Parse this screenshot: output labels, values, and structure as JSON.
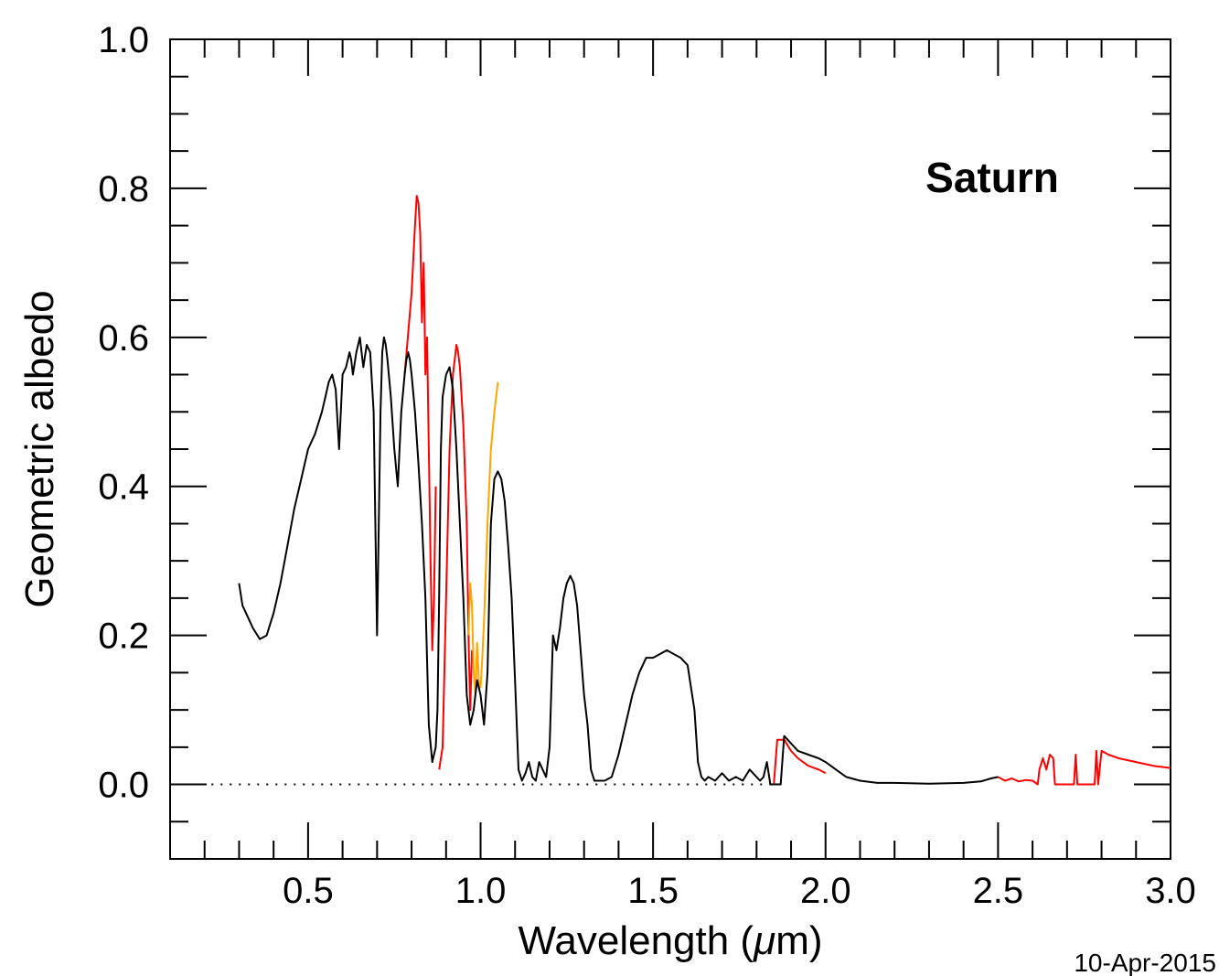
{
  "chart_data": {
    "type": "line",
    "title": "",
    "annotation": "Saturn",
    "date_stamp": "10-Apr-2015",
    "xlabel_main": "Wavelength (",
    "xlabel_mu": "μ",
    "xlabel_end": "m)",
    "ylabel": "Geometric albedo",
    "xlim": [
      0.1,
      3.0
    ],
    "ylim": [
      -0.1,
      1.0
    ],
    "xticks": [
      0.5,
      1.0,
      1.5,
      2.0,
      2.5,
      3.0
    ],
    "xtick_labels": [
      "0.5",
      "1.0",
      "1.5",
      "2.0",
      "2.5",
      "3.0"
    ],
    "yticks": [
      0.0,
      0.2,
      0.4,
      0.6,
      0.8,
      1.0
    ],
    "ytick_labels": [
      "0.0",
      "0.2",
      "0.4",
      "0.6",
      "0.8",
      "1.0"
    ],
    "zero_line": {
      "y": 0.0,
      "x_start": 0.22,
      "x_end": 1.84,
      "style": "dotted"
    },
    "colors": {
      "black": "#000000",
      "red": "#ff0000",
      "orange": "#ffa500"
    },
    "series": [
      {
        "color": "#ff0000",
        "x": [
          0.78,
          0.8,
          0.81,
          0.815,
          0.82,
          0.825,
          0.83,
          0.835,
          0.84,
          0.845,
          0.85,
          0.855,
          0.86,
          0.865,
          0.87
        ],
        "y": [
          0.55,
          0.66,
          0.75,
          0.79,
          0.78,
          0.74,
          0.62,
          0.7,
          0.55,
          0.6,
          0.45,
          0.3,
          0.18,
          0.25,
          0.4
        ]
      },
      {
        "color": "#ff0000",
        "x": [
          0.88,
          0.89,
          0.9,
          0.91,
          0.92,
          0.93,
          0.935,
          0.94,
          0.95,
          0.96,
          0.965,
          0.97,
          0.975
        ],
        "y": [
          0.02,
          0.05,
          0.25,
          0.45,
          0.55,
          0.59,
          0.58,
          0.56,
          0.48,
          0.35,
          0.2,
          0.1,
          0.18
        ]
      },
      {
        "color": "#ffa500",
        "x": [
          0.965,
          0.97,
          0.975,
          0.98,
          0.985,
          0.99,
          0.995,
          1.0,
          1.005,
          1.01,
          1.02,
          1.03,
          1.04,
          1.05
        ],
        "y": [
          0.2,
          0.27,
          0.24,
          0.15,
          0.12,
          0.19,
          0.14,
          0.13,
          0.17,
          0.22,
          0.35,
          0.45,
          0.5,
          0.54
        ]
      },
      {
        "color": "#ff0000",
        "x": [
          1.85,
          1.86,
          1.88,
          1.9,
          1.92,
          1.95,
          1.98,
          2.0
        ],
        "y": [
          0.0,
          0.06,
          0.06,
          0.045,
          0.035,
          0.025,
          0.02,
          0.015
        ]
      },
      {
        "color": "#ff0000",
        "x": [
          2.5,
          2.52,
          2.54,
          2.56,
          2.58,
          2.6,
          2.615,
          2.62,
          2.63,
          2.64,
          2.65,
          2.66,
          2.665,
          2.67,
          2.7,
          2.72,
          2.725,
          2.73,
          2.735,
          2.75,
          2.78,
          2.785,
          2.79,
          2.8,
          2.82,
          2.85,
          2.9,
          2.95,
          3.0
        ],
        "y": [
          0.01,
          0.005,
          0.008,
          0.004,
          0.006,
          0.005,
          0.0,
          0.02,
          0.035,
          0.02,
          0.04,
          0.035,
          0.0,
          0.0,
          0.0,
          0.0,
          0.04,
          0.0,
          0.0,
          0.0,
          0.0,
          0.045,
          0.0,
          0.045,
          0.04,
          0.035,
          0.03,
          0.025,
          0.022
        ]
      },
      {
        "color": "#000000",
        "x": [
          0.3,
          0.31,
          0.32,
          0.34,
          0.36,
          0.38,
          0.4,
          0.42,
          0.44,
          0.46,
          0.48,
          0.5,
          0.52,
          0.54,
          0.55,
          0.56,
          0.57,
          0.58,
          0.59,
          0.6,
          0.61,
          0.615,
          0.62,
          0.625,
          0.63,
          0.64,
          0.65,
          0.66,
          0.67,
          0.68,
          0.69,
          0.7,
          0.71,
          0.715,
          0.72,
          0.725,
          0.73,
          0.74,
          0.75,
          0.76,
          0.77,
          0.78,
          0.785,
          0.79,
          0.795,
          0.8,
          0.81,
          0.82,
          0.83,
          0.84,
          0.85,
          0.86,
          0.87,
          0.875,
          0.88,
          0.885,
          0.89,
          0.9,
          0.91,
          0.92,
          0.93,
          0.94,
          0.95,
          0.96,
          0.97,
          0.98,
          0.99,
          1.0,
          1.01,
          1.02,
          1.03,
          1.04,
          1.05,
          1.06,
          1.07,
          1.08,
          1.09,
          1.1,
          1.105,
          1.11,
          1.12,
          1.13,
          1.14,
          1.15,
          1.16,
          1.17,
          1.18,
          1.19,
          1.2,
          1.21,
          1.22,
          1.23,
          1.24,
          1.25,
          1.26,
          1.27,
          1.28,
          1.29,
          1.3,
          1.31,
          1.32,
          1.33,
          1.34,
          1.36,
          1.38,
          1.4,
          1.42,
          1.44,
          1.46,
          1.48,
          1.5,
          1.52,
          1.54,
          1.56,
          1.58,
          1.6,
          1.62,
          1.63,
          1.64,
          1.65,
          1.66,
          1.68,
          1.7,
          1.72,
          1.74,
          1.76,
          1.78,
          1.8,
          1.81,
          1.82,
          1.83,
          1.84,
          1.86,
          1.87,
          1.88,
          1.9,
          1.92,
          1.95,
          1.98,
          2.0,
          2.03,
          2.06,
          2.1,
          2.15,
          2.2,
          2.3,
          2.4,
          2.45,
          2.48,
          2.5
        ],
        "y": [
          0.27,
          0.24,
          0.23,
          0.21,
          0.195,
          0.2,
          0.23,
          0.27,
          0.32,
          0.37,
          0.41,
          0.45,
          0.47,
          0.5,
          0.52,
          0.54,
          0.55,
          0.53,
          0.45,
          0.55,
          0.56,
          0.57,
          0.58,
          0.57,
          0.55,
          0.58,
          0.6,
          0.56,
          0.59,
          0.58,
          0.5,
          0.2,
          0.5,
          0.58,
          0.6,
          0.59,
          0.57,
          0.52,
          0.45,
          0.4,
          0.5,
          0.55,
          0.57,
          0.58,
          0.57,
          0.55,
          0.5,
          0.43,
          0.35,
          0.25,
          0.08,
          0.03,
          0.05,
          0.1,
          0.25,
          0.45,
          0.52,
          0.55,
          0.56,
          0.53,
          0.45,
          0.35,
          0.25,
          0.12,
          0.08,
          0.1,
          0.14,
          0.12,
          0.08,
          0.15,
          0.35,
          0.41,
          0.42,
          0.41,
          0.38,
          0.32,
          0.25,
          0.14,
          0.08,
          0.02,
          0.005,
          0.015,
          0.03,
          0.01,
          0.005,
          0.03,
          0.02,
          0.01,
          0.05,
          0.2,
          0.18,
          0.21,
          0.25,
          0.27,
          0.28,
          0.27,
          0.24,
          0.18,
          0.12,
          0.08,
          0.02,
          0.005,
          0.005,
          0.005,
          0.01,
          0.04,
          0.08,
          0.12,
          0.15,
          0.17,
          0.17,
          0.175,
          0.18,
          0.175,
          0.17,
          0.16,
          0.1,
          0.03,
          0.01,
          0.005,
          0.01,
          0.005,
          0.015,
          0.005,
          0.01,
          0.005,
          0.02,
          0.01,
          0.005,
          0.01,
          0.03,
          0.0,
          0.0,
          0.0,
          0.065,
          0.055,
          0.045,
          0.04,
          0.035,
          0.03,
          0.02,
          0.01,
          0.005,
          0.002,
          0.002,
          0.001,
          0.002,
          0.004,
          0.008,
          0.01
        ]
      }
    ]
  }
}
